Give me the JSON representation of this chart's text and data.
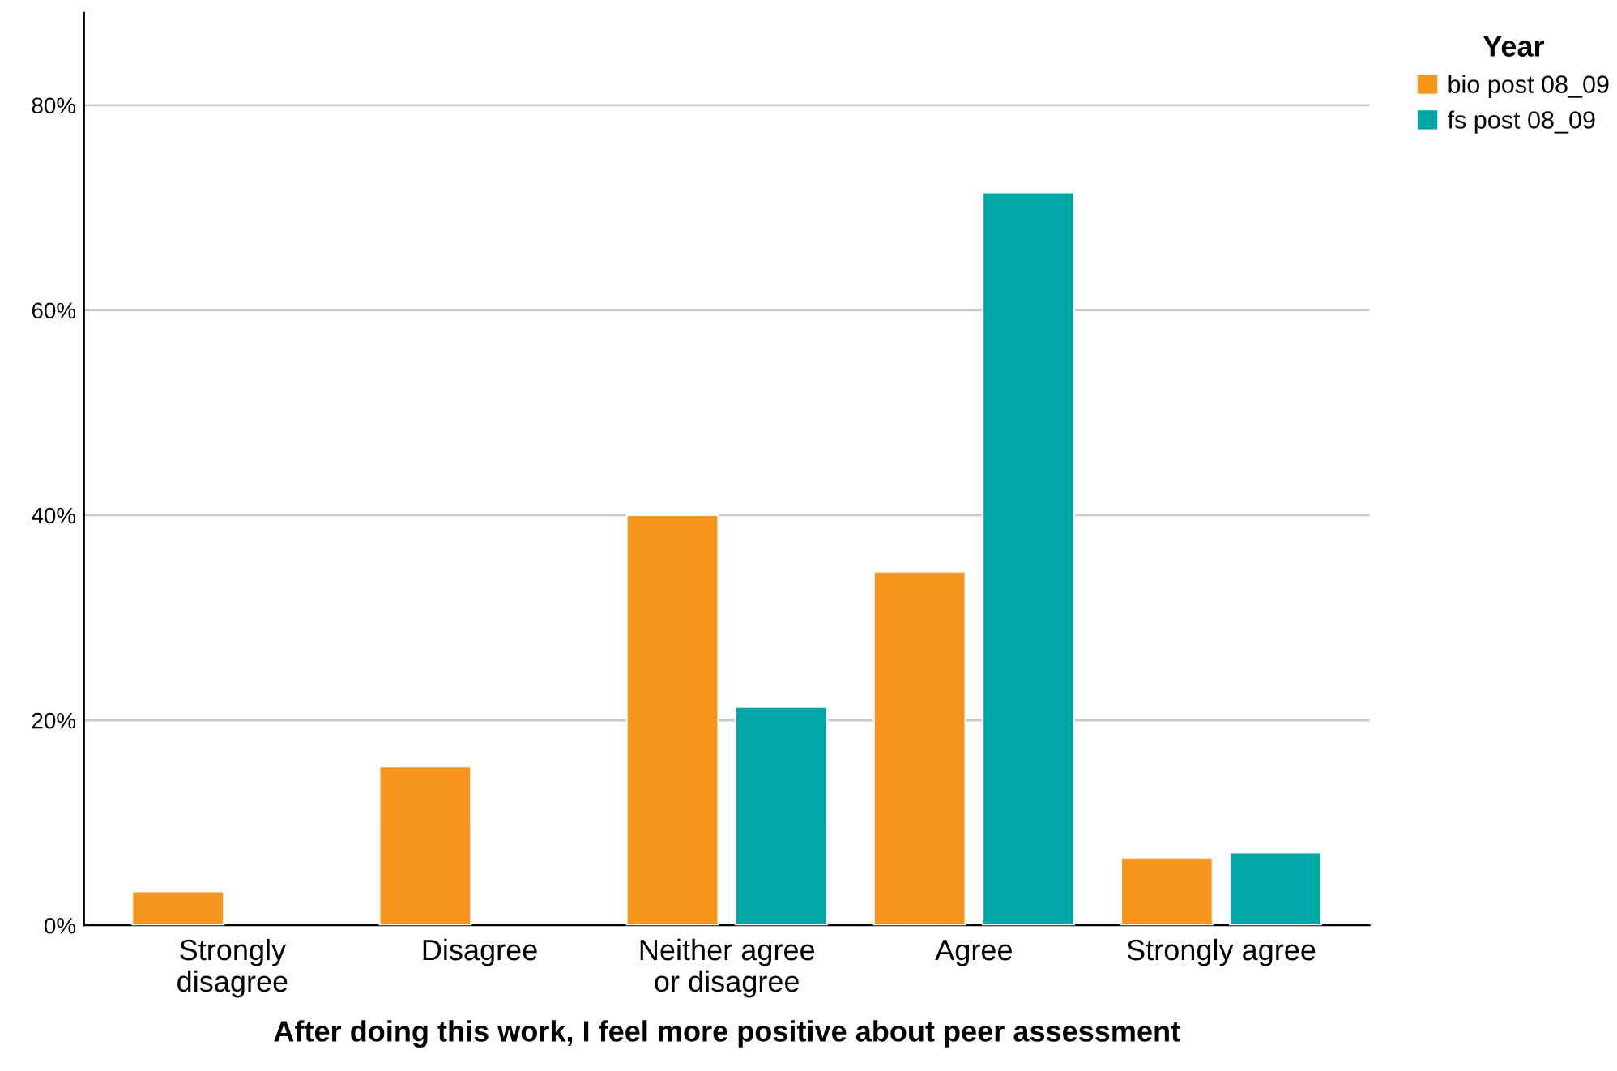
{
  "chart_data": {
    "type": "bar",
    "xlabel": "After doing this work, I feel more positive about peer assessment",
    "categories": [
      "Strongly\ndisagree",
      "Disagree",
      "Neither agree\nor disagree",
      "Agree",
      "Strongly agree"
    ],
    "series": [
      {
        "name": "bio post 08_09",
        "color": "#f7941d",
        "values": [
          3.3,
          15.5,
          40.0,
          34.5,
          6.6
        ]
      },
      {
        "name": "fs post 08_09",
        "color": "#00a5a5",
        "values": [
          null,
          null,
          21.3,
          71.5,
          7.1
        ]
      }
    ],
    "legend_title": "Year",
    "legend": "top right",
    "ylim": [
      0,
      89
    ],
    "yticks": [
      {
        "value": 0,
        "label": "0%"
      },
      {
        "value": 20,
        "label": "20%"
      },
      {
        "value": 40,
        "label": "40%"
      },
      {
        "value": 60,
        "label": "60%"
      },
      {
        "value": 80,
        "label": "80%"
      }
    ],
    "grid": "y"
  }
}
